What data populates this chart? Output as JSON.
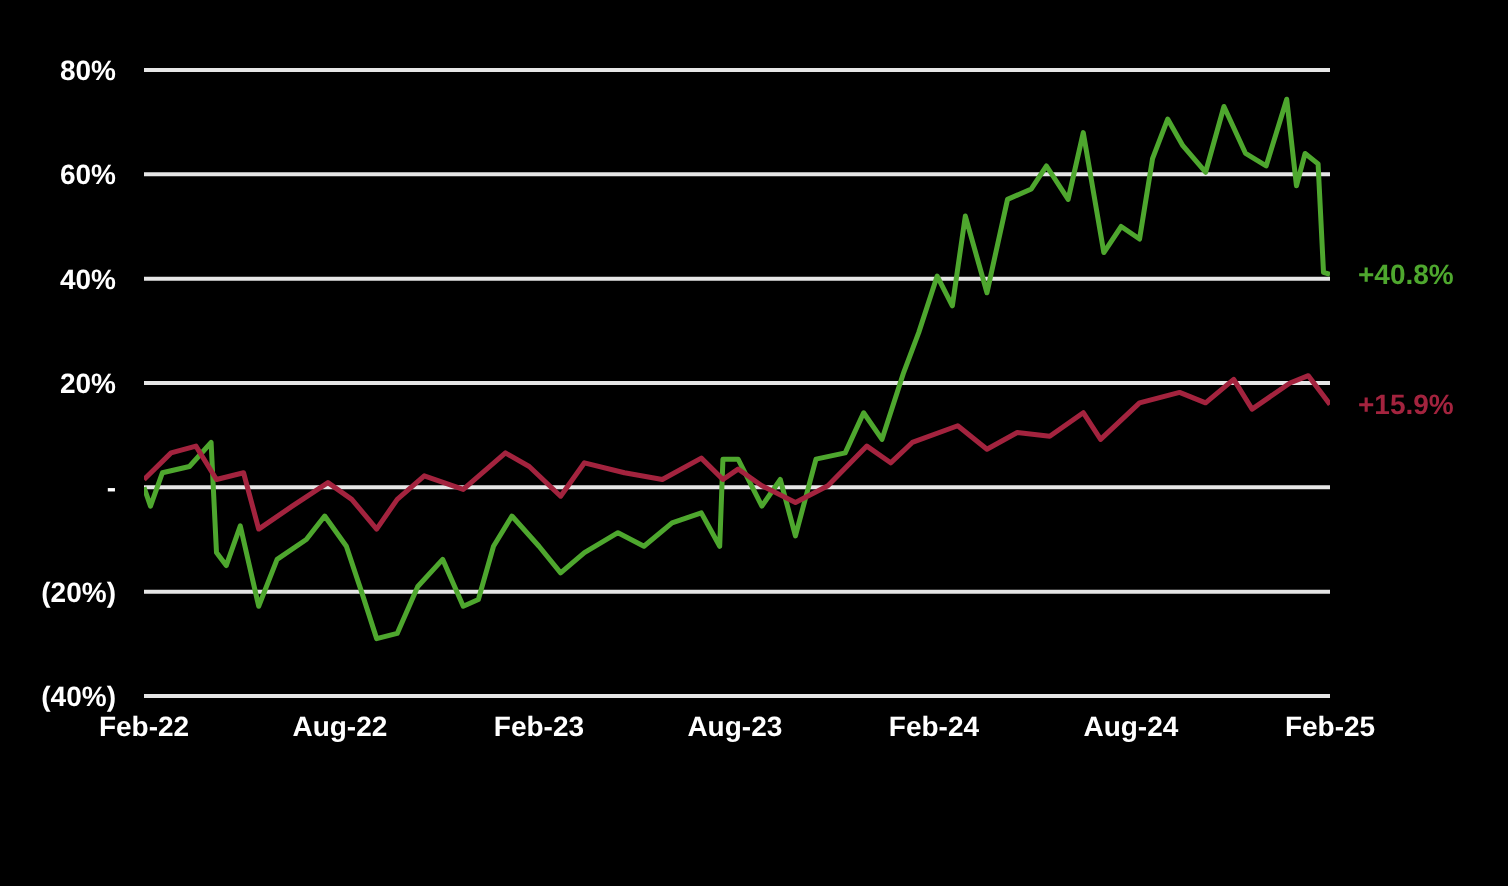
{
  "chart_data": {
    "type": "line",
    "xlim": [
      "2022-02-01",
      "2025-02-01"
    ],
    "xticks": [
      {
        "value": "2022-02-01",
        "label": "Feb-22"
      },
      {
        "value": "2022-08-01",
        "label": "Aug-22"
      },
      {
        "value": "2023-02-01",
        "label": "Feb-23"
      },
      {
        "value": "2023-08-01",
        "label": "Aug-23"
      },
      {
        "value": "2024-02-01",
        "label": "Feb-24"
      },
      {
        "value": "2024-08-01",
        "label": "Aug-24"
      },
      {
        "value": "2025-02-01",
        "label": "Feb-25"
      }
    ],
    "ylim": [
      -40,
      80
    ],
    "yticks": [
      {
        "value": -40,
        "label": "(40%)"
      },
      {
        "value": -20,
        "label": "(20%)"
      },
      {
        "value": 0,
        "label": "-"
      },
      {
        "value": 20,
        "label": "20%"
      },
      {
        "value": 40,
        "label": "40%"
      },
      {
        "value": 60,
        "label": "60%"
      },
      {
        "value": 80,
        "label": "80%"
      }
    ],
    "grid": "y",
    "marker": "none",
    "line_style": "solid",
    "series": [
      {
        "color": "#4ea72e",
        "x": [
          "2022-02-01",
          "2022-02-07",
          "2022-02-18",
          "2022-03-15",
          "2022-04-04",
          "2022-04-09",
          "2022-04-18",
          "2022-05-01",
          "2022-05-18",
          "2022-06-04",
          "2022-07-01",
          "2022-07-18",
          "2022-08-07",
          "2022-08-21",
          "2022-09-04",
          "2022-09-23",
          "2022-10-12",
          "2022-11-04",
          "2022-11-23",
          "2022-12-07",
          "2022-12-21",
          "2023-01-07",
          "2023-02-01",
          "2023-02-21",
          "2023-03-15",
          "2023-04-15",
          "2023-05-09",
          "2023-06-04",
          "2023-07-01",
          "2023-07-18",
          "2023-07-21",
          "2023-08-04",
          "2023-08-26",
          "2023-09-12",
          "2023-09-26",
          "2023-10-15",
          "2023-11-11",
          "2023-11-28",
          "2023-12-15",
          "2024-01-04",
          "2024-01-18",
          "2024-02-04",
          "2024-02-18",
          "2024-03-01",
          "2024-03-21",
          "2024-04-09",
          "2024-05-01",
          "2024-05-15",
          "2024-06-04",
          "2024-06-18",
          "2024-07-07",
          "2024-07-23",
          "2024-08-09",
          "2024-08-21",
          "2024-09-04",
          "2024-09-18",
          "2024-10-09",
          "2024-10-26",
          "2024-11-15",
          "2024-12-04",
          "2024-12-23",
          "2025-01-01",
          "2025-01-09",
          "2025-01-21",
          "2025-01-26",
          "2025-02-01"
        ],
        "values": [
          0,
          -3.6,
          2.8,
          4,
          8.6,
          -12.5,
          -15,
          -7.4,
          -22.8,
          -13.8,
          -10,
          -5.5,
          -11.3,
          -20,
          -29,
          -28,
          -19,
          -13.8,
          -22.8,
          -21.5,
          -11.3,
          -5.5,
          -11.3,
          -16.4,
          -12.5,
          -8.7,
          -11.3,
          -6.8,
          -4.9,
          -11.3,
          5.4,
          5.4,
          -3.6,
          1.5,
          -9.3,
          5.4,
          6.6,
          14.3,
          9.2,
          22,
          29.7,
          40.5,
          34.8,
          52,
          37.3,
          55.2,
          57.2,
          61.6,
          55.2,
          68,
          45,
          50,
          47.6,
          63,
          70.6,
          65.5,
          60.4,
          73,
          64,
          61.6,
          74.4,
          57.8,
          64,
          62,
          41.2,
          40.8
        ]
      },
      {
        "color": "#a3233e",
        "x": [
          "2022-02-01",
          "2022-02-26",
          "2022-03-21",
          "2022-04-09",
          "2022-05-04",
          "2022-05-18",
          "2022-06-18",
          "2022-07-21",
          "2022-08-12",
          "2022-09-04",
          "2022-09-23",
          "2022-10-18",
          "2022-11-23",
          "2023-01-01",
          "2023-01-23",
          "2023-02-21",
          "2023-03-15",
          "2023-04-21",
          "2023-05-26",
          "2023-07-01",
          "2023-07-21",
          "2023-08-04",
          "2023-08-26",
          "2023-09-26",
          "2023-10-26",
          "2023-12-01",
          "2023-12-23",
          "2024-01-12",
          "2024-02-23",
          "2024-03-21",
          "2024-04-18",
          "2024-05-18",
          "2024-06-18",
          "2024-07-04",
          "2024-08-09",
          "2024-09-15",
          "2024-10-09",
          "2024-11-04",
          "2024-11-21",
          "2024-12-26",
          "2025-01-12",
          "2025-02-01"
        ],
        "values": [
          1.5,
          6.6,
          7.9,
          1.5,
          2.8,
          -8,
          -3.6,
          0.9,
          -2.3,
          -8,
          -2.3,
          2.2,
          -0.4,
          6.6,
          4,
          -1.7,
          4.7,
          2.8,
          1.5,
          5.6,
          1.5,
          3.5,
          0.3,
          -2.9,
          0.3,
          7.9,
          4.7,
          8.6,
          11.8,
          7.3,
          10.5,
          9.8,
          14.3,
          9.2,
          16.2,
          18.2,
          16.2,
          20.7,
          15,
          20,
          21.4,
          15.9
        ]
      }
    ],
    "annotations": [
      {
        "text": "+40.8%",
        "x": "2025-02-01",
        "y": 40.8
      },
      {
        "text": "+15.9%",
        "x": "2025-02-01",
        "y": 15.9
      }
    ]
  }
}
